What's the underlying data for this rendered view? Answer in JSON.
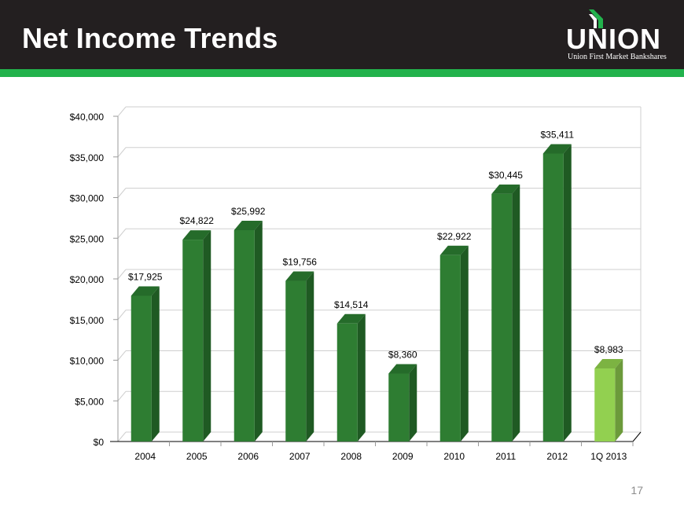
{
  "slide": {
    "title": "Net Income Trends",
    "page_number": "17"
  },
  "logo": {
    "wordmark": "UNION",
    "tagline": "Union First Market Bankshares",
    "icon": "union-chevron-logo-icon"
  },
  "colors": {
    "header_bg": "#231f20",
    "accent_band": "#22b24c",
    "bar_primary": "#2e7d32",
    "bar_highlight": "#92d050"
  },
  "chart_data": {
    "type": "bar",
    "title": "",
    "xlabel": "",
    "ylabel": "",
    "categories": [
      "2004",
      "2005",
      "2006",
      "2007",
      "2008",
      "2009",
      "2010",
      "2011",
      "2012",
      "1Q 2013"
    ],
    "values": [
      17925,
      24822,
      25992,
      19756,
      14514,
      8360,
      22922,
      30445,
      35411,
      8983
    ],
    "data_labels": [
      "$17,925",
      "$24,822",
      "$25,992",
      "$19,756",
      "$14,514",
      "$8,360",
      "$22,922",
      "$30,445",
      "$35,411",
      "$8,983"
    ],
    "highlight_index": 9,
    "ylim": [
      0,
      40000
    ],
    "yticks": [
      0,
      5000,
      10000,
      15000,
      20000,
      25000,
      30000,
      35000,
      40000
    ],
    "ytick_labels": [
      "$0",
      "$5,000",
      "$10,000",
      "$15,000",
      "$20,000",
      "$25,000",
      "$30,000",
      "$35,000",
      "$40,000"
    ],
    "grid": true,
    "legend": "none"
  }
}
